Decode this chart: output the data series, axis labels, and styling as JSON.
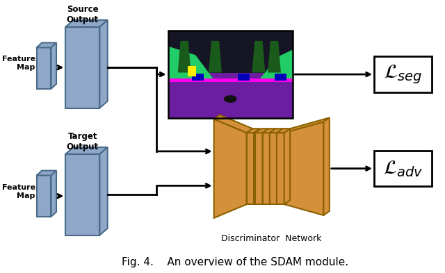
{
  "title": "Fig. 4.    An overview of the SDAM module.",
  "bg_color": "#ffffff",
  "feature_map_color": "#8fa8c8",
  "feature_map_edge_color": "#4a6a8a",
  "discriminator_color": "#d4913a",
  "discriminator_edge_color": "#8b6000",
  "label_source_output": "Source\nOutput",
  "label_target_output": "Target\nOutput",
  "label_feature_map_top": "Feature\nMap",
  "label_feature_map_bot": "Feature\nMap",
  "label_disc_network": "Discriminator  Network"
}
